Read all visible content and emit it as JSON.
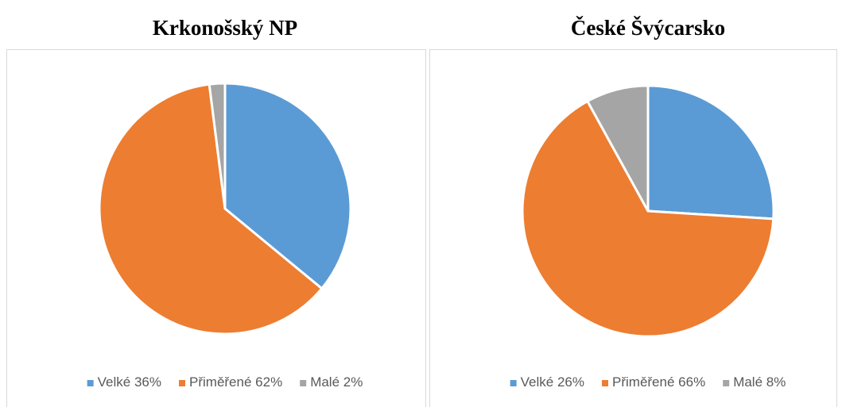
{
  "chart_data": [
    {
      "type": "pie",
      "title": "Krkonošský NP",
      "categories": [
        "Velké",
        "Přiměřené",
        "Malé"
      ],
      "values": [
        36,
        62,
        2
      ],
      "value_labels": [
        "36%",
        "62%",
        "2%"
      ],
      "colors": [
        "#5b9bd5",
        "#ed7d31",
        "#a5a5a5"
      ],
      "legend": "bottom"
    },
    {
      "type": "pie",
      "title": "České Švýcarsko",
      "categories": [
        "Velké",
        "Přiměřené",
        "Malé"
      ],
      "values": [
        26,
        66,
        8
      ],
      "value_labels": [
        "26%",
        "66%",
        "8%"
      ],
      "colors": [
        "#5b9bd5",
        "#ed7d31",
        "#a5a5a5"
      ],
      "legend": "bottom"
    }
  ]
}
